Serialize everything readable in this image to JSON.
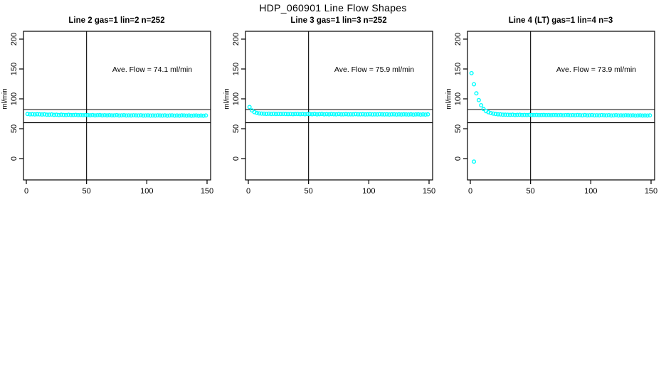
{
  "title": "HDP_060901  Line Flow Shapes",
  "accent_color": "#00FFFF",
  "axis_color": "#000000",
  "chart_data": [
    {
      "type": "scatter",
      "title": "Line 2 gas=1 lin=2 n=252",
      "annotation": "Ave. Flow =  74.1  ml/min",
      "ave_flow": 74.1,
      "xlabel": "",
      "ylabel": "ml/min",
      "xlim": [
        -6,
        156
      ],
      "ylim": [
        -36,
        214
      ],
      "xticks": [
        0,
        50,
        100,
        150
      ],
      "yticks": [
        0,
        50,
        100,
        150,
        200
      ],
      "ref_lines_h": [
        82,
        60
      ],
      "ref_lines_v": [
        50
      ],
      "marker": "open-circle",
      "color": "#00FFFF",
      "x": [
        1,
        3,
        5,
        7,
        9,
        11,
        13,
        15,
        17,
        19,
        21,
        23,
        25,
        27,
        29,
        31,
        33,
        35,
        37,
        39,
        41,
        43,
        45,
        47,
        49,
        51,
        53,
        55,
        57,
        59,
        61,
        63,
        65,
        67,
        69,
        71,
        73,
        75,
        77,
        79,
        81,
        83,
        85,
        87,
        89,
        91,
        93,
        95,
        97,
        99,
        101,
        103,
        105,
        107,
        109,
        111,
        113,
        115,
        117,
        119,
        121,
        123,
        125,
        127,
        129,
        131,
        133,
        135,
        137,
        139,
        141,
        143,
        145,
        147,
        149
      ],
      "y": [
        74.7,
        74.1,
        74.3,
        73.9,
        74.3,
        74.0,
        73.8,
        74.0,
        73.5,
        73.6,
        73.8,
        73.2,
        73.4,
        73.0,
        73.4,
        73.1,
        72.9,
        73.3,
        72.8,
        73.0,
        73.2,
        72.7,
        72.9,
        72.6,
        72.9,
        72.7,
        72.5,
        72.8,
        72.4,
        72.6,
        72.8,
        72.4,
        72.6,
        72.3,
        72.6,
        72.4,
        72.3,
        72.7,
        72.2,
        72.4,
        72.6,
        72.2,
        72.4,
        72.1,
        72.5,
        72.3,
        72.1,
        72.5,
        72.0,
        72.2,
        72.4,
        72.0,
        72.2,
        72.0,
        72.4,
        72.2,
        72.0,
        72.3,
        71.9,
        72.1,
        72.3,
        71.9,
        72.1,
        71.9,
        72.3,
        72.1,
        71.9,
        72.2,
        71.8,
        72.0,
        72.2,
        71.8,
        72.0,
        71.8,
        72.1
      ]
    },
    {
      "type": "scatter",
      "title": "Line 3 gas=1 lin=3 n=252",
      "annotation": "Ave. Flow =  75.9  ml/min",
      "ave_flow": 75.9,
      "xlabel": "",
      "ylabel": "ml/min",
      "xlim": [
        -6,
        156
      ],
      "ylim": [
        -36,
        214
      ],
      "xticks": [
        0,
        50,
        100,
        150
      ],
      "yticks": [
        0,
        50,
        100,
        150,
        200
      ],
      "ref_lines_h": [
        82,
        60
      ],
      "ref_lines_v": [
        50
      ],
      "marker": "open-circle",
      "color": "#00FFFF",
      "x": [
        1,
        3,
        5,
        7,
        9,
        11,
        13,
        15,
        17,
        19,
        21,
        23,
        25,
        27,
        29,
        31,
        33,
        35,
        37,
        39,
        41,
        43,
        45,
        47,
        49,
        51,
        53,
        55,
        57,
        59,
        61,
        63,
        65,
        67,
        69,
        71,
        73,
        75,
        77,
        79,
        81,
        83,
        85,
        87,
        89,
        91,
        93,
        95,
        97,
        99,
        101,
        103,
        105,
        107,
        109,
        111,
        113,
        115,
        117,
        119,
        121,
        123,
        125,
        127,
        129,
        131,
        133,
        135,
        137,
        139,
        141,
        143,
        145,
        147,
        149
      ],
      "y": [
        86.3,
        80.7,
        77.9,
        76.4,
        75.6,
        75.2,
        75.1,
        74.9,
        75.1,
        74.8,
        75.0,
        74.7,
        74.9,
        74.6,
        74.9,
        74.7,
        74.5,
        74.8,
        74.4,
        74.6,
        74.8,
        74.4,
        74.6,
        74.3,
        74.7,
        74.5,
        74.3,
        74.6,
        74.2,
        74.4,
        74.6,
        74.2,
        74.4,
        74.2,
        74.5,
        74.3,
        74.1,
        74.5,
        74.0,
        74.2,
        74.4,
        74.0,
        74.2,
        74.0,
        74.4,
        74.2,
        74.0,
        74.3,
        73.9,
        74.1,
        74.3,
        73.9,
        74.1,
        73.9,
        74.3,
        74.1,
        73.9,
        74.2,
        73.8,
        74.0,
        74.2,
        73.8,
        74.0,
        73.8,
        74.1,
        73.9,
        73.8,
        74.1,
        73.7,
        73.9,
        74.1,
        73.7,
        73.9,
        73.7,
        74.0
      ]
    },
    {
      "type": "scatter",
      "title": "Line 4 (LT) gas=1 lin=4 n=3",
      "annotation": "Ave. Flow =  73.9  ml/min",
      "ave_flow": 73.9,
      "xlabel": "",
      "ylabel": "ml/min",
      "xlim": [
        -6,
        156
      ],
      "ylim": [
        -36,
        214
      ],
      "xticks": [
        0,
        50,
        100,
        150
      ],
      "yticks": [
        0,
        50,
        100,
        150,
        200
      ],
      "ref_lines_h": [
        82,
        60
      ],
      "ref_lines_v": [
        50
      ],
      "marker": "open-circle",
      "color": "#00FFFF",
      "x": [
        3,
        1,
        3,
        5,
        7,
        9,
        11,
        13,
        15,
        17,
        19,
        21,
        23,
        25,
        27,
        29,
        31,
        33,
        35,
        37,
        39,
        41,
        43,
        45,
        47,
        49,
        51,
        53,
        55,
        57,
        59,
        61,
        63,
        65,
        67,
        69,
        71,
        73,
        75,
        77,
        79,
        81,
        83,
        85,
        87,
        89,
        91,
        93,
        95,
        97,
        99,
        101,
        103,
        105,
        107,
        109,
        111,
        113,
        115,
        117,
        119,
        121,
        123,
        125,
        127,
        129,
        131,
        133,
        135,
        137,
        139,
        141,
        143,
        145,
        147,
        149
      ],
      "y": [
        -5,
        143.0,
        124.4,
        109.2,
        97.8,
        89.3,
        83.0,
        79.5,
        77.6,
        76.2,
        75.3,
        74.6,
        74.2,
        73.9,
        73.6,
        73.5,
        73.3,
        73.2,
        73.4,
        73.0,
        73.2,
        73.3,
        72.9,
        73.1,
        72.8,
        73.2,
        73.0,
        72.8,
        73.1,
        72.7,
        72.9,
        73.1,
        72.7,
        72.9,
        72.6,
        73.0,
        72.8,
        72.6,
        72.9,
        72.5,
        72.7,
        72.9,
        72.5,
        72.7,
        72.5,
        72.8,
        72.6,
        72.4,
        72.8,
        72.3,
        72.5,
        72.7,
        72.3,
        72.5,
        72.3,
        72.7,
        72.5,
        72.3,
        72.6,
        72.2,
        72.4,
        72.6,
        72.2,
        72.4,
        72.2,
        72.5,
        72.3,
        72.1,
        72.4,
        72.0,
        72.2,
        72.4,
        72.0,
        72.2,
        72.0,
        72.3
      ]
    }
  ]
}
